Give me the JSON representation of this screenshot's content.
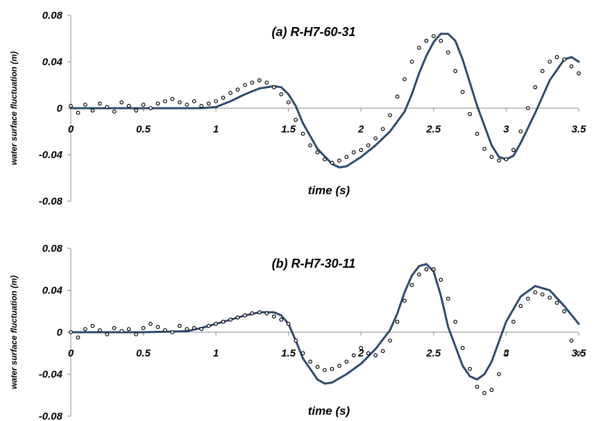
{
  "chart_data": [
    {
      "type": "line",
      "title": "(a) R-H7-60-31",
      "xlabel": "time (s)",
      "ylabel": "water surface fluctuation (m)",
      "xlim": [
        0,
        3.5
      ],
      "ylim": [
        -0.08,
        0.08
      ],
      "xticks": [
        "0",
        "0.5",
        "1",
        "1.5",
        "2",
        "2.5",
        "3",
        "3.5"
      ],
      "yticks": [
        "0.08",
        "0.04",
        "0",
        "-0.04",
        "-0.08"
      ],
      "series": [
        {
          "style": "line",
          "color": "#2e4a6e",
          "x": [
            0,
            0.5,
            0.9,
            1.0,
            1.1,
            1.2,
            1.3,
            1.4,
            1.45,
            1.5,
            1.55,
            1.6,
            1.7,
            1.8,
            1.85,
            1.9,
            2.0,
            2.1,
            2.2,
            2.3,
            2.35,
            2.4,
            2.45,
            2.5,
            2.55,
            2.6,
            2.65,
            2.7,
            2.8,
            2.9,
            2.95,
            3.0,
            3.05,
            3.1,
            3.2,
            3.3,
            3.4,
            3.45,
            3.5
          ],
          "y": [
            0,
            0,
            0,
            0.001,
            0.006,
            0.012,
            0.017,
            0.019,
            0.018,
            0.012,
            0.002,
            -0.013,
            -0.035,
            -0.048,
            -0.051,
            -0.05,
            -0.042,
            -0.032,
            -0.02,
            -0.003,
            0.012,
            0.03,
            0.045,
            0.057,
            0.064,
            0.064,
            0.058,
            0.042,
            0.002,
            -0.032,
            -0.042,
            -0.044,
            -0.041,
            -0.03,
            -0.004,
            0.024,
            0.042,
            0.044,
            0.04
          ]
        },
        {
          "style": "markers",
          "color": "#000000",
          "x": [
            0.0,
            0.05,
            0.1,
            0.15,
            0.2,
            0.25,
            0.3,
            0.35,
            0.4,
            0.45,
            0.5,
            0.55,
            0.6,
            0.65,
            0.7,
            0.75,
            0.8,
            0.85,
            0.9,
            0.95,
            1.0,
            1.05,
            1.1,
            1.15,
            1.2,
            1.25,
            1.3,
            1.35,
            1.4,
            1.45,
            1.5,
            1.55,
            1.6,
            1.65,
            1.7,
            1.75,
            1.8,
            1.85,
            1.9,
            1.95,
            2.0,
            2.05,
            2.1,
            2.15,
            2.2,
            2.25,
            2.3,
            2.35,
            2.4,
            2.45,
            2.5,
            2.55,
            2.6,
            2.65,
            2.7,
            2.75,
            2.8,
            2.85,
            2.9,
            2.95,
            3.0,
            3.05,
            3.1,
            3.15,
            3.2,
            3.25,
            3.3,
            3.35,
            3.4,
            3.45,
            3.5
          ],
          "y": [
            0.002,
            -0.004,
            0.003,
            -0.002,
            0.004,
            0.001,
            -0.003,
            0.005,
            0.002,
            -0.002,
            0.003,
            0.0,
            0.004,
            0.006,
            0.008,
            0.005,
            0.003,
            0.006,
            0.002,
            0.004,
            0.006,
            0.009,
            0.013,
            0.016,
            0.02,
            0.022,
            0.024,
            0.022,
            0.018,
            0.012,
            0.005,
            -0.01,
            -0.022,
            -0.032,
            -0.038,
            -0.044,
            -0.047,
            -0.045,
            -0.042,
            -0.038,
            -0.036,
            -0.032,
            -0.026,
            -0.018,
            -0.006,
            0.01,
            0.025,
            0.04,
            0.052,
            0.058,
            0.062,
            0.058,
            0.048,
            0.032,
            0.014,
            -0.005,
            -0.022,
            -0.035,
            -0.042,
            -0.045,
            -0.044,
            -0.036,
            -0.02,
            0.0,
            0.018,
            0.032,
            0.04,
            0.044,
            0.042,
            0.036,
            0.03
          ]
        }
      ]
    },
    {
      "type": "line",
      "title": "(b) R-H7-30-11",
      "xlabel": "time (s)",
      "ylabel": "water surface fluctuation (m)",
      "xlim": [
        0,
        3.5
      ],
      "ylim": [
        -0.08,
        0.08
      ],
      "xticks": [
        "0",
        "0.5",
        "1",
        "1.5",
        "2",
        "2.5",
        "3",
        "3.5"
      ],
      "yticks": [
        "0.08",
        "0.04",
        "0",
        "-0.04",
        "-0.08"
      ],
      "series": [
        {
          "style": "line",
          "color": "#2e4a6e",
          "x": [
            0,
            0.5,
            0.8,
            0.9,
            1.0,
            1.1,
            1.2,
            1.3,
            1.4,
            1.45,
            1.5,
            1.55,
            1.6,
            1.7,
            1.75,
            1.8,
            1.9,
            2.0,
            2.1,
            2.2,
            2.25,
            2.3,
            2.35,
            2.4,
            2.45,
            2.5,
            2.55,
            2.6,
            2.7,
            2.75,
            2.8,
            2.85,
            2.9,
            3.0,
            3.1,
            3.2,
            3.3,
            3.4,
            3.5
          ],
          "y": [
            0,
            0,
            0.001,
            0.004,
            0.008,
            0.012,
            0.016,
            0.019,
            0.019,
            0.016,
            0.008,
            -0.008,
            -0.025,
            -0.045,
            -0.049,
            -0.048,
            -0.04,
            -0.03,
            -0.016,
            0.002,
            0.018,
            0.038,
            0.054,
            0.063,
            0.065,
            0.058,
            0.035,
            0.005,
            -0.032,
            -0.042,
            -0.045,
            -0.04,
            -0.028,
            0.01,
            0.034,
            0.044,
            0.04,
            0.025,
            0.008
          ]
        },
        {
          "style": "markers",
          "color": "#000000",
          "x": [
            0.0,
            0.05,
            0.1,
            0.15,
            0.2,
            0.25,
            0.3,
            0.35,
            0.4,
            0.45,
            0.5,
            0.55,
            0.6,
            0.65,
            0.7,
            0.75,
            0.8,
            0.85,
            0.9,
            0.95,
            1.0,
            1.05,
            1.1,
            1.15,
            1.2,
            1.25,
            1.3,
            1.35,
            1.4,
            1.45,
            1.5,
            1.55,
            1.6,
            1.65,
            1.7,
            1.75,
            1.8,
            1.85,
            1.9,
            1.95,
            2.0,
            2.05,
            2.1,
            2.15,
            2.2,
            2.25,
            2.3,
            2.35,
            2.4,
            2.45,
            2.5,
            2.55,
            2.6,
            2.65,
            2.7,
            2.75,
            2.8,
            2.85,
            2.9,
            2.95,
            3.0,
            3.05,
            3.1,
            3.15,
            3.2,
            3.25,
            3.3,
            3.35,
            3.4,
            3.45,
            3.5
          ],
          "y": [
            0.0,
            -0.005,
            0.003,
            0.006,
            0.002,
            -0.002,
            0.004,
            0.001,
            0.003,
            -0.002,
            0.004,
            0.008,
            0.005,
            0.002,
            0.0,
            0.006,
            0.003,
            0.004,
            0.003,
            0.006,
            0.008,
            0.01,
            0.012,
            0.014,
            0.016,
            0.018,
            0.019,
            0.018,
            0.015,
            0.012,
            0.008,
            -0.008,
            -0.02,
            -0.028,
            -0.033,
            -0.036,
            -0.035,
            -0.032,
            -0.028,
            -0.022,
            -0.015,
            -0.02,
            -0.022,
            -0.018,
            -0.008,
            0.01,
            0.03,
            0.045,
            0.055,
            0.06,
            0.06,
            0.05,
            0.032,
            0.01,
            -0.015,
            -0.035,
            -0.052,
            -0.058,
            -0.055,
            -0.04,
            -0.02,
            0.01,
            0.025,
            0.032,
            0.038,
            0.036,
            0.033,
            0.028,
            0.02,
            -0.008,
            -0.02
          ]
        }
      ]
    }
  ]
}
